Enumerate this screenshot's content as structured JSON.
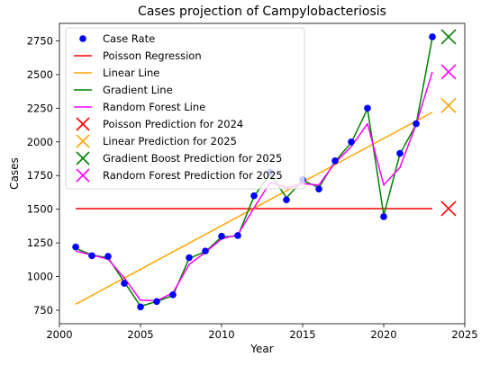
{
  "chart_data": {
    "type": "line",
    "title": "Cases projection of Campylobacteriosis",
    "xlabel": "Year",
    "ylabel": "Cases",
    "xlim": [
      2000,
      2025
    ],
    "ylim": [
      650,
      2880
    ],
    "x_ticks": [
      2000,
      2005,
      2010,
      2015,
      2020,
      2025
    ],
    "y_ticks": [
      750,
      1000,
      1250,
      1500,
      1750,
      2000,
      2250,
      2500,
      2750
    ],
    "x_tick_labels": [
      "2000",
      "2005",
      "2010",
      "2015",
      "2020",
      "2025"
    ],
    "y_tick_labels": [
      "750",
      "1000",
      "1250",
      "1500",
      "1750",
      "2000",
      "2250",
      "2500",
      "2750"
    ],
    "grid": false,
    "legend_position": "top-left",
    "x": [
      2001,
      2002,
      2003,
      2004,
      2005,
      2006,
      2007,
      2008,
      2009,
      2010,
      2011,
      2012,
      2013,
      2014,
      2015,
      2016,
      2017,
      2018,
      2019,
      2020,
      2021,
      2022,
      2023
    ],
    "series": [
      {
        "name": "Case Rate",
        "kind": "scatter",
        "color": "#0000ff",
        "values": [
          1220,
          1155,
          1150,
          950,
          775,
          815,
          865,
          1140,
          1190,
          1300,
          1305,
          1600,
          1775,
          1570,
          1720,
          1650,
          1860,
          2000,
          2250,
          1445,
          1915,
          2135,
          2780
        ]
      },
      {
        "name": "Poisson Regression",
        "kind": "line",
        "color": "#ff0000",
        "x": [
          2001,
          2023
        ],
        "values": [
          1505,
          1505
        ]
      },
      {
        "name": "Linear Line",
        "kind": "line",
        "color": "#ffa500",
        "x": [
          2001,
          2023
        ],
        "values": [
          795,
          2220
        ]
      },
      {
        "name": "Gradient Line",
        "kind": "line",
        "color": "#008000",
        "values": [
          1210,
          1160,
          1140,
          960,
          780,
          815,
          860,
          1135,
          1185,
          1295,
          1300,
          1595,
          1765,
          1585,
          1715,
          1660,
          1855,
          1995,
          2245,
          1455,
          1910,
          2130,
          2775
        ]
      },
      {
        "name": "Random Forest Line",
        "kind": "line",
        "color": "#ff00ff",
        "values": [
          1190,
          1160,
          1130,
          990,
          825,
          820,
          880,
          1090,
          1180,
          1280,
          1310,
          1510,
          1700,
          1660,
          1690,
          1680,
          1845,
          1965,
          2135,
          1680,
          1810,
          2130,
          2520
        ]
      },
      {
        "name": "Poisson Prediction for 2024",
        "kind": "marker-x",
        "color": "#ff0000",
        "x": [
          2024
        ],
        "values": [
          1505
        ]
      },
      {
        "name": "Linear Prediction for 2025",
        "kind": "marker-x",
        "color": "#ffa500",
        "x": [
          2024
        ],
        "values": [
          2270
        ]
      },
      {
        "name": "Gradient Boost Prediction for 2025",
        "kind": "marker-x",
        "color": "#008000",
        "x": [
          2024
        ],
        "values": [
          2780
        ]
      },
      {
        "name": "Random Forest Prediction for 2025",
        "kind": "marker-x",
        "color": "#ff00ff",
        "x": [
          2024
        ],
        "values": [
          2520
        ]
      }
    ]
  }
}
